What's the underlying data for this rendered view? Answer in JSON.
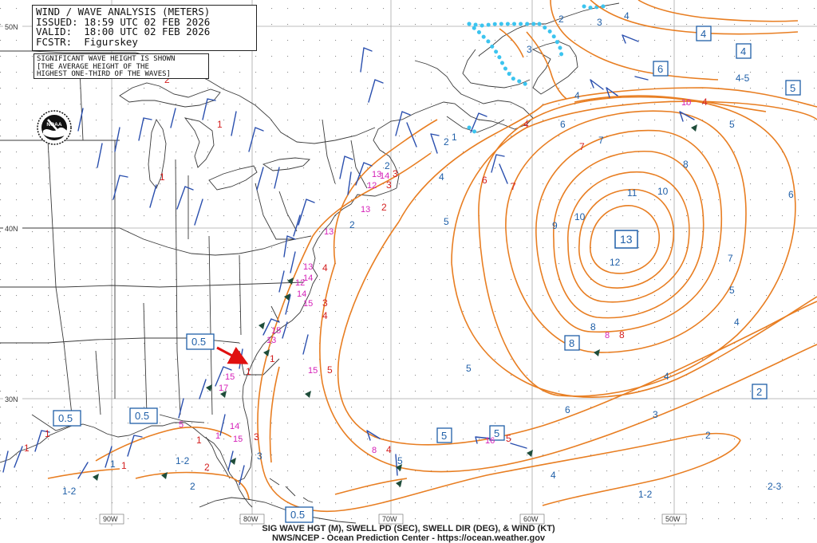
{
  "header": {
    "title": "WIND / WAVE ANALYSIS (METERS)",
    "issued": "ISSUED: 18:59 UTC 02 FEB 2026",
    "valid": "VALID:  18:00 UTC 02 FEB 2026",
    "forecaster": "FCSTR:  Figurskey"
  },
  "note": {
    "line1": "SIGNIFICANT WAVE HEIGHT IS SHOWN",
    "line2": "[THE AVERAGE HEIGHT OF THE",
    "line3": "HIGHEST ONE-THIRD OF THE WAVES]"
  },
  "logo_text": "NOAA",
  "footer": {
    "line1": "SIG WAVE HGT (M), SWELL PD (SEC), SWELL DIR (DEG), & WIND (KT)",
    "line2": "NWS/NCEP - Ocean Prediction Center - https://ocean.weather.gov"
  },
  "lat_labels": [
    "50N",
    "40N",
    "30N"
  ],
  "lon_labels": [
    "90W",
    "80W",
    "70W",
    "60W",
    "50W"
  ],
  "max_center_label": "13",
  "boxed_labels": [
    "0.5",
    "0.5",
    "0.5",
    "0.5",
    "4",
    "4",
    "6",
    "5",
    "8",
    "2",
    "5",
    "5"
  ],
  "contour_labels": [
    "2",
    "2",
    "2",
    "2",
    "2",
    "3",
    "3",
    "3",
    "4",
    "4",
    "4",
    "4",
    "4",
    "4",
    "5",
    "5",
    "5",
    "5",
    "5",
    "6",
    "6",
    "6",
    "7",
    "7",
    "8",
    "8",
    "9",
    "10",
    "10",
    "11",
    "12",
    "1-2",
    "1-2",
    "1-2",
    "2-3",
    "4-5",
    "1",
    "1",
    "3",
    "2"
  ],
  "red_labels": [
    "1",
    "1",
    "1",
    "1",
    "1",
    "1",
    "1",
    "1",
    "2",
    "2",
    "2",
    "3",
    "3",
    "3",
    "3",
    "4",
    "4",
    "4",
    "4",
    "5",
    "5",
    "6",
    "7",
    "7",
    "8",
    "4"
  ],
  "magenta_labels": [
    "13",
    "12",
    "14",
    "13",
    "13",
    "13",
    "14",
    "14",
    "15",
    "15",
    "13",
    "15",
    "15",
    "17",
    "14",
    "15",
    "12",
    "8",
    "16",
    "10",
    "8",
    "5",
    "1"
  ],
  "colors": {
    "contour": "#e87e22",
    "wave_label": "#1f5fa8",
    "wind_barb": "#2a4fae",
    "swell_height": "#d41f1f",
    "swell_period": "#d51fb8",
    "ice_edge": "#3cc4ef",
    "coast": "#3a3a3a",
    "grid": "#9a9a9a",
    "arrow": "#e01010"
  }
}
